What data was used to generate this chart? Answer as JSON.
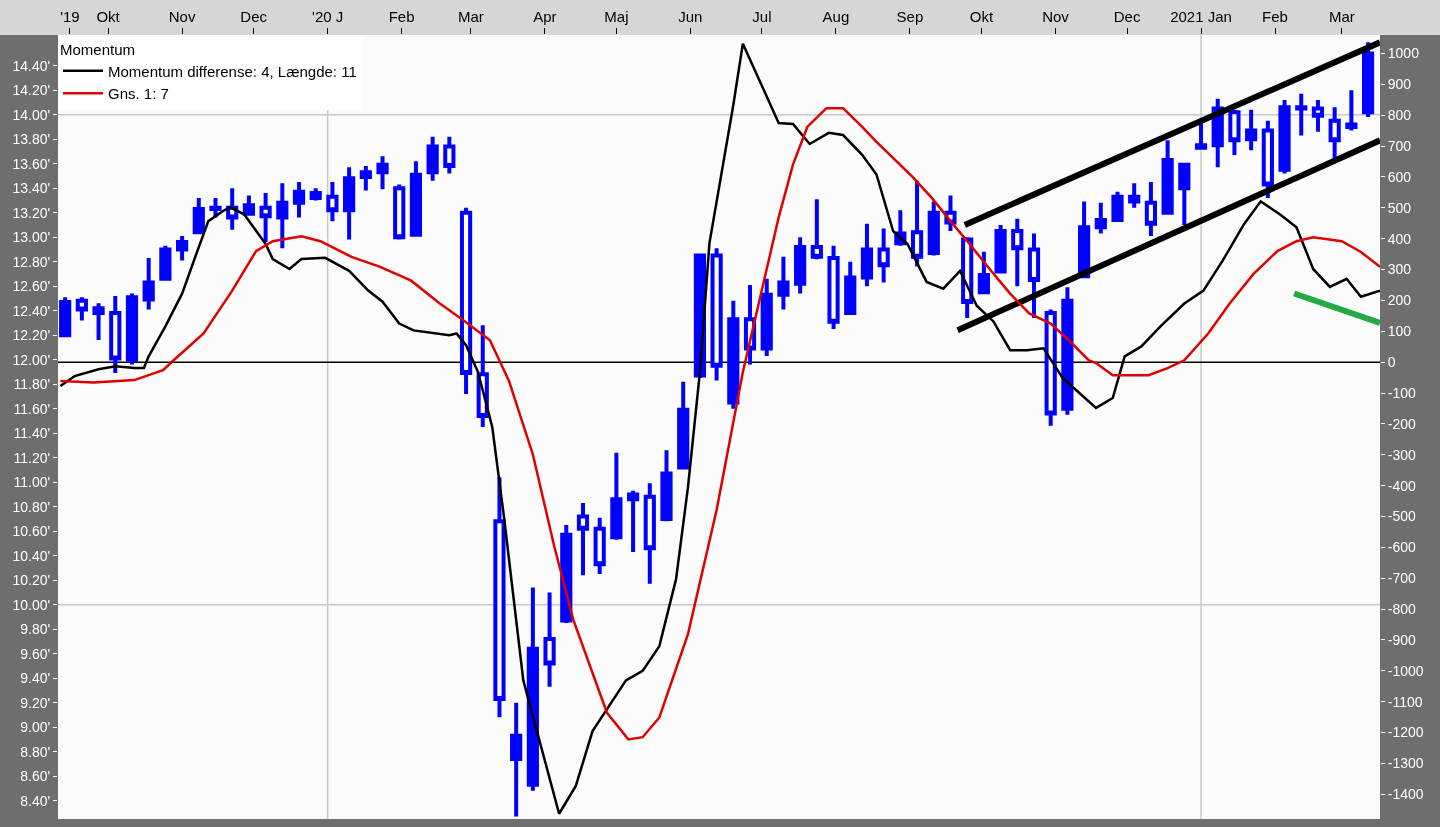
{
  "chart_data": {
    "type": "candlestick",
    "legend_title": "Momentum",
    "xlim": [
      "2019-09-10",
      "2021-03-17"
    ],
    "xticks": [
      {
        "value": "2019-09-15",
        "label": "'19"
      },
      {
        "value": "2019-10-01",
        "label": "Okt"
      },
      {
        "value": "2019-11-01",
        "label": "Nov"
      },
      {
        "value": "2019-12-01",
        "label": "Dec"
      },
      {
        "value": "2020-01-01",
        "label": "'20 J"
      },
      {
        "value": "2020-02-01",
        "label": "Feb"
      },
      {
        "value": "2020-03-01",
        "label": "Mar"
      },
      {
        "value": "2020-04-01",
        "label": "Apr"
      },
      {
        "value": "2020-05-01",
        "label": "Maj"
      },
      {
        "value": "2020-06-01",
        "label": "Jun"
      },
      {
        "value": "2020-07-01",
        "label": "Jul"
      },
      {
        "value": "2020-08-01",
        "label": "Aug"
      },
      {
        "value": "2020-09-01",
        "label": "Sep"
      },
      {
        "value": "2020-10-01",
        "label": "Okt"
      },
      {
        "value": "2020-11-01",
        "label": "Nov"
      },
      {
        "value": "2020-12-01",
        "label": "Dec"
      },
      {
        "value": "2021-01-01",
        "label": "2021 Jan"
      },
      {
        "value": "2021-02-01",
        "label": "Feb"
      },
      {
        "value": "2021-03-01",
        "label": "Mar"
      }
    ],
    "ylim": [
      8.25,
      14.65
    ],
    "yticks": [
      {
        "value": 8.4,
        "label": "8.40'"
      },
      {
        "value": 8.6,
        "label": "8.60'"
      },
      {
        "value": 8.8,
        "label": "8.80'"
      },
      {
        "value": 9.0,
        "label": "9.00'"
      },
      {
        "value": 9.2,
        "label": "9.20'"
      },
      {
        "value": 9.4,
        "label": "9.40'"
      },
      {
        "value": 9.6,
        "label": "9.60'"
      },
      {
        "value": 9.8,
        "label": "9.80'"
      },
      {
        "value": 10.0,
        "label": "10.00'"
      },
      {
        "value": 10.2,
        "label": "10.20'"
      },
      {
        "value": 10.4,
        "label": "10.40'"
      },
      {
        "value": 10.6,
        "label": "10.60'"
      },
      {
        "value": 10.8,
        "label": "10.80'"
      },
      {
        "value": 11.0,
        "label": "11.00'"
      },
      {
        "value": 11.2,
        "label": "11.20'"
      },
      {
        "value": 11.4,
        "label": "11.40'"
      },
      {
        "value": 11.6,
        "label": "11.60'"
      },
      {
        "value": 11.8,
        "label": "11.80'"
      },
      {
        "value": 12.0,
        "label": "12.00'"
      },
      {
        "value": 12.2,
        "label": "12.20'"
      },
      {
        "value": 12.4,
        "label": "12.40'"
      },
      {
        "value": 12.6,
        "label": "12.60'"
      },
      {
        "value": 12.8,
        "label": "12.80'"
      },
      {
        "value": 13.0,
        "label": "13.00'"
      },
      {
        "value": 13.2,
        "label": "13.20'"
      },
      {
        "value": 13.4,
        "label": "13.40'"
      },
      {
        "value": 13.6,
        "label": "13.60'"
      },
      {
        "value": 13.8,
        "label": "13.80'"
      },
      {
        "value": 14.0,
        "label": "14.00'"
      },
      {
        "value": 14.2,
        "label": "14.20'"
      },
      {
        "value": 14.4,
        "label": "14.40'"
      }
    ],
    "y2lim": [
      -1480,
      1060
    ],
    "y2ticks": [
      -1400,
      -1300,
      -1200,
      -1100,
      -1000,
      -900,
      -800,
      -700,
      -600,
      -500,
      -400,
      -300,
      -200,
      -100,
      0,
      100,
      200,
      300,
      400,
      500,
      600,
      700,
      800,
      900,
      1000
    ],
    "grid": false,
    "legend": "top left",
    "ref_lines": [
      {
        "axis": "y",
        "value": 14.0,
        "color": "#c8c8c8"
      },
      {
        "axis": "y",
        "value": 10.0,
        "color": "#c8c8c8"
      },
      {
        "axis": "x",
        "value": "2020-01-01",
        "color": "#c8c8c8"
      },
      {
        "axis": "x",
        "value": "2021-01-01",
        "color": "#c8c8c8"
      },
      {
        "axis": "y2",
        "value": 0,
        "color": "#000000"
      }
    ],
    "series": [
      {
        "type": "line",
        "name": "Momentum differense: 4, Længde: 11",
        "color": "#000000",
        "axis": "y2",
        "x": [
          "2019-09-11",
          "2019-09-17",
          "2019-09-27",
          "2019-10-04",
          "2019-10-12",
          "2019-10-16",
          "2019-10-18",
          "2019-10-25",
          "2019-11-01",
          "2019-11-08",
          "2019-11-12",
          "2019-11-18",
          "2019-11-21",
          "2019-11-27",
          "2019-12-06",
          "2019-12-09",
          "2019-12-16",
          "2019-12-21",
          "2019-12-31",
          "2020-01-10",
          "2020-01-18",
          "2020-01-24",
          "2020-01-31",
          "2020-02-06",
          "2020-02-21",
          "2020-02-24",
          "2020-02-28",
          "2020-03-04",
          "2020-03-10",
          "2020-03-15",
          "2020-03-23",
          "2020-04-07",
          "2020-04-14",
          "2020-04-21",
          "2020-05-05",
          "2020-05-12",
          "2020-05-19",
          "2020-05-26",
          "2020-05-31",
          "2020-06-05",
          "2020-06-09",
          "2020-06-19",
          "2020-06-23",
          "2020-07-08",
          "2020-07-14",
          "2020-07-21",
          "2020-07-29",
          "2020-08-04",
          "2020-08-12",
          "2020-08-18",
          "2020-08-25",
          "2020-08-31",
          "2020-09-08",
          "2020-09-15",
          "2020-09-22",
          "2020-09-29",
          "2020-10-06",
          "2020-10-13",
          "2020-10-20",
          "2020-10-27",
          "2020-11-04",
          "2020-11-11",
          "2020-11-18",
          "2020-11-25",
          "2020-11-30",
          "2020-12-07",
          "2020-12-15",
          "2020-12-25",
          "2021-01-02",
          "2021-01-10",
          "2021-01-19",
          "2021-01-26",
          "2021-02-03",
          "2021-02-10",
          "2021-02-17",
          "2021-02-24",
          "2021-03-03",
          "2021-03-09",
          "2021-03-17"
        ],
        "values": [
          -77,
          -45,
          -23,
          -13,
          -19,
          -19,
          19,
          116,
          222,
          373,
          457,
          489,
          502,
          479,
          383,
          334,
          302,
          334,
          338,
          296,
          232,
          196,
          125,
          103,
          87,
          93,
          55,
          -32,
          -211,
          -508,
          -1031,
          -1463,
          -1373,
          -1195,
          -1031,
          -1000,
          -920,
          -703,
          -405,
          -32,
          386,
          833,
          1032,
          775,
          772,
          707,
          743,
          736,
          672,
          608,
          424,
          383,
          260,
          238,
          296,
          183,
          132,
          39,
          39,
          45,
          -51,
          -100,
          -148,
          -116,
          19,
          51,
          116,
          190,
          232,
          328,
          447,
          521,
          479,
          437,
          302,
          244,
          270,
          212,
          232
        ]
      },
      {
        "type": "line",
        "name": "Gns. 1: 7",
        "color": "#e00000",
        "axis": "y2",
        "x": [
          "2019-09-11",
          "2019-09-25",
          "2019-10-12",
          "2019-10-24",
          "2019-10-28",
          "2019-11-10",
          "2019-11-22",
          "2019-12-02",
          "2019-12-09",
          "2019-12-21",
          "2019-12-29",
          "2020-01-11",
          "2020-01-23",
          "2020-02-05",
          "2020-02-17",
          "2020-02-27",
          "2020-03-09",
          "2020-03-17",
          "2020-03-27",
          "2020-04-05",
          "2020-04-13",
          "2020-04-27",
          "2020-05-06",
          "2020-05-12",
          "2020-05-19",
          "2020-05-31",
          "2020-06-12",
          "2020-06-23",
          "2020-07-08",
          "2020-07-14",
          "2020-07-20",
          "2020-07-28",
          "2020-08-04",
          "2020-08-12",
          "2020-08-18",
          "2020-09-02",
          "2020-09-10",
          "2020-09-18",
          "2020-09-26",
          "2020-10-05",
          "2020-10-13",
          "2020-10-21",
          "2020-10-30",
          "2020-11-07",
          "2020-11-15",
          "2020-11-18",
          "2020-11-25",
          "2020-12-10",
          "2020-12-18",
          "2020-12-25",
          "2021-01-04",
          "2021-01-13",
          "2021-01-23",
          "2021-02-02",
          "2021-02-10",
          "2021-02-17",
          "2021-03-01",
          "2021-03-09",
          "2021-03-17"
        ],
        "values": [
          -61,
          -66,
          -58,
          -26,
          3,
          93,
          232,
          360,
          392,
          408,
          392,
          341,
          309,
          264,
          190,
          135,
          71,
          -61,
          -299,
          -598,
          -836,
          -1135,
          -1222,
          -1215,
          -1151,
          -881,
          -479,
          -32,
          469,
          640,
          762,
          823,
          823,
          762,
          714,
          601,
          534,
          457,
          383,
          296,
          222,
          158,
          125,
          68,
          6,
          -3,
          -42,
          -42,
          -19,
          6,
          93,
          190,
          286,
          360,
          392,
          405,
          392,
          357,
          309
        ]
      },
      {
        "type": "line",
        "color": "#000000",
        "x": [
          "2020-09-24",
          "2021-03-17"
        ],
        "values": [
          13.1,
          14.59
        ]
      },
      {
        "type": "line",
        "color": "#000000",
        "x": [
          "2020-09-21",
          "2021-03-17"
        ],
        "values": [
          12.24,
          13.79
        ]
      },
      {
        "type": "line",
        "color": "#22aa44",
        "x": [
          "2021-02-09",
          "2021-03-17"
        ],
        "values": [
          12.54,
          12.3
        ]
      },
      {
        "color": "#0000ff",
        "x": [
          "2019-09-13",
          "2019-09-20",
          "2019-09-27",
          "2019-10-04",
          "2019-10-11",
          "2019-10-18",
          "2019-10-25",
          "2019-11-01",
          "2019-11-08",
          "2019-11-15",
          "2019-11-22",
          "2019-11-29",
          "2019-12-06",
          "2019-12-13",
          "2019-12-20",
          "2019-12-27",
          "2020-01-03",
          "2020-01-10",
          "2020-01-17",
          "2020-01-24",
          "2020-01-31",
          "2020-02-07",
          "2020-02-14",
          "2020-02-21",
          "2020-02-28",
          "2020-03-06",
          "2020-03-13",
          "2020-03-20",
          "2020-03-27",
          "2020-04-03",
          "2020-04-10",
          "2020-04-17",
          "2020-04-24",
          "2020-05-01",
          "2020-05-08",
          "2020-05-15",
          "2020-05-22",
          "2020-05-29",
          "2020-06-05",
          "2020-06-12",
          "2020-06-19",
          "2020-06-26",
          "2020-07-03",
          "2020-07-10",
          "2020-07-17",
          "2020-07-24",
          "2020-07-31",
          "2020-08-07",
          "2020-08-14",
          "2020-08-21",
          "2020-08-28",
          "2020-09-04",
          "2020-09-11",
          "2020-09-18",
          "2020-09-25",
          "2020-10-02",
          "2020-10-09",
          "2020-10-16",
          "2020-10-23",
          "2020-10-30",
          "2020-11-06",
          "2020-11-13",
          "2020-11-20",
          "2020-11-27",
          "2020-12-04",
          "2020-12-11",
          "2020-12-18",
          "2020-12-25",
          "2021-01-01",
          "2021-01-08",
          "2021-01-15",
          "2021-01-22",
          "2021-01-29",
          "2021-02-05",
          "2021-02-12",
          "2021-02-19",
          "2021-02-26",
          "2021-03-05",
          "2021-03-12"
        ],
        "ohlc": [
          [
            12.2,
            12.51,
            12.2,
            12.47
          ],
          [
            12.48,
            12.51,
            12.32,
            12.41
          ],
          [
            12.42,
            12.46,
            12.16,
            12.38
          ],
          [
            12.38,
            12.52,
            11.89,
            12.01
          ],
          [
            12.0,
            12.54,
            11.96,
            12.51
          ],
          [
            12.49,
            12.83,
            12.41,
            12.63
          ],
          [
            12.66,
            12.93,
            12.66,
            12.9
          ],
          [
            12.9,
            13.01,
            12.81,
            12.96
          ],
          [
            13.04,
            13.32,
            13.04,
            13.23
          ],
          [
            13.23,
            13.32,
            13.16,
            13.24
          ],
          [
            13.24,
            13.4,
            13.06,
            13.16
          ],
          [
            13.19,
            13.34,
            13.19,
            13.26
          ],
          [
            13.24,
            13.36,
            12.96,
            13.17
          ],
          [
            13.16,
            13.44,
            12.91,
            13.28
          ],
          [
            13.28,
            13.45,
            13.16,
            13.37
          ],
          [
            13.32,
            13.4,
            13.3,
            13.36
          ],
          [
            13.33,
            13.45,
            13.13,
            13.22
          ],
          [
            13.22,
            13.57,
            12.98,
            13.48
          ],
          [
            13.49,
            13.58,
            13.38,
            13.53
          ],
          [
            13.53,
            13.66,
            13.39,
            13.59
          ],
          [
            13.4,
            13.43,
            12.98,
            13.0
          ],
          [
            13.02,
            13.62,
            13.01,
            13.51
          ],
          [
            13.53,
            13.82,
            13.46,
            13.74
          ],
          [
            13.74,
            13.82,
            13.52,
            13.58
          ],
          [
            13.2,
            13.24,
            11.72,
            11.89
          ],
          [
            11.88,
            12.28,
            11.45,
            11.54
          ],
          [
            10.68,
            11.04,
            9.08,
            9.23
          ],
          [
            8.74,
            9.2,
            8.27,
            8.93
          ],
          [
            8.53,
            10.14,
            8.48,
            9.64
          ],
          [
            9.72,
            10.1,
            9.33,
            9.52
          ],
          [
            9.87,
            10.65,
            9.85,
            10.57
          ],
          [
            10.72,
            10.83,
            10.24,
            10.62
          ],
          [
            10.62,
            10.71,
            10.25,
            10.33
          ],
          [
            10.55,
            11.24,
            10.53,
            10.86
          ],
          [
            10.86,
            10.93,
            10.43,
            10.9
          ],
          [
            10.88,
            10.99,
            10.17,
            10.46
          ],
          [
            10.7,
            11.26,
            10.68,
            11.07
          ],
          [
            11.12,
            11.82,
            11.11,
            11.59
          ],
          [
            11.87,
            12.86,
            11.85,
            12.85
          ],
          [
            12.85,
            12.91,
            11.83,
            11.95
          ],
          [
            11.65,
            12.48,
            11.6,
            12.33
          ],
          [
            12.33,
            12.61,
            11.96,
            12.09
          ],
          [
            12.09,
            12.66,
            12.03,
            12.53
          ],
          [
            12.53,
            12.84,
            12.41,
            12.63
          ],
          [
            12.62,
            13.0,
            12.54,
            12.92
          ],
          [
            12.92,
            13.31,
            12.82,
            12.84
          ],
          [
            12.83,
            12.93,
            12.25,
            12.31
          ],
          [
            12.38,
            12.8,
            12.37,
            12.67
          ],
          [
            12.67,
            13.11,
            12.6,
            12.9
          ],
          [
            12.9,
            13.07,
            12.63,
            12.77
          ],
          [
            12.95,
            13.22,
            12.93,
            13.03
          ],
          [
            13.04,
            13.46,
            12.76,
            12.84
          ],
          [
            12.87,
            13.29,
            12.85,
            13.2
          ],
          [
            13.2,
            13.34,
            13.05,
            13.12
          ],
          [
            12.98,
            13.0,
            12.34,
            12.47
          ],
          [
            12.55,
            12.88,
            12.54,
            12.69
          ],
          [
            12.72,
            13.1,
            12.72,
            13.05
          ],
          [
            13.05,
            13.15,
            12.6,
            12.91
          ],
          [
            12.9,
            13.03,
            12.34,
            12.65
          ],
          [
            12.38,
            12.41,
            11.46,
            11.56
          ],
          [
            11.6,
            12.59,
            11.55,
            12.48
          ],
          [
            12.68,
            13.29,
            12.67,
            13.08
          ],
          [
            13.08,
            13.28,
            13.03,
            13.14
          ],
          [
            13.14,
            13.37,
            13.13,
            13.33
          ],
          [
            13.33,
            13.44,
            13.24,
            13.29
          ],
          [
            13.28,
            13.45,
            13.01,
            13.11
          ],
          [
            13.2,
            13.79,
            13.2,
            13.63
          ],
          [
            13.4,
            13.6,
            13.1,
            13.59
          ],
          [
            13.75,
            13.93,
            13.72,
            13.73
          ],
          [
            13.75,
            14.13,
            13.57,
            14.05
          ],
          [
            14.02,
            14.04,
            13.67,
            13.79
          ],
          [
            13.8,
            14.04,
            13.71,
            13.87
          ],
          [
            13.87,
            13.95,
            13.32,
            13.43
          ],
          [
            13.55,
            14.12,
            13.52,
            14.06
          ],
          [
            14.06,
            14.17,
            13.83,
            14.05
          ],
          [
            14.05,
            14.12,
            13.86,
            13.99
          ],
          [
            13.95,
            14.06,
            13.63,
            13.79
          ],
          [
            13.9,
            14.2,
            13.87,
            13.92
          ],
          [
            14.02,
            14.59,
            13.98,
            14.5
          ]
        ]
      }
    ]
  }
}
